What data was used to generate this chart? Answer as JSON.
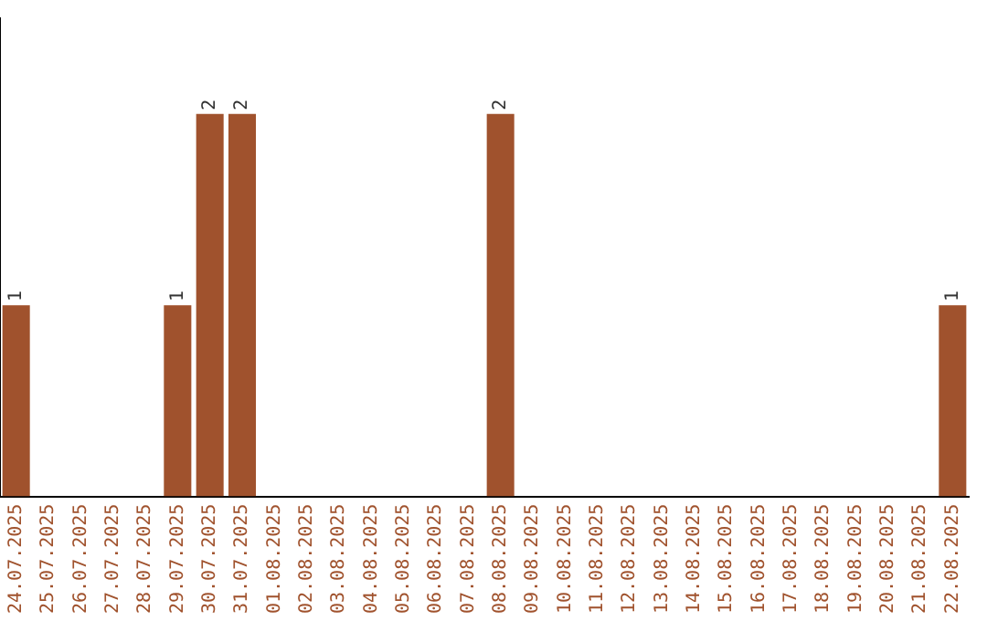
{
  "chart_data": {
    "type": "bar",
    "categories": [
      "24.07.2025",
      "25.07.2025",
      "26.07.2025",
      "27.07.2025",
      "28.07.2025",
      "29.07.2025",
      "30.07.2025",
      "31.07.2025",
      "01.08.2025",
      "02.08.2025",
      "03.08.2025",
      "04.08.2025",
      "05.08.2025",
      "06.08.2025",
      "07.08.2025",
      "08.08.2025",
      "09.08.2025",
      "10.08.2025",
      "11.08.2025",
      "12.08.2025",
      "13.08.2025",
      "14.08.2025",
      "15.08.2025",
      "16.08.2025",
      "17.08.2025",
      "18.08.2025",
      "19.08.2025",
      "20.08.2025",
      "21.08.2025",
      "22.08.2025"
    ],
    "values": [
      1,
      0,
      0,
      0,
      0,
      1,
      2,
      2,
      0,
      0,
      0,
      0,
      0,
      0,
      0,
      2,
      0,
      0,
      0,
      0,
      0,
      0,
      0,
      0,
      0,
      0,
      0,
      0,
      0,
      1
    ],
    "value_labels": [
      "1",
      null,
      null,
      null,
      null,
      "1",
      "2",
      "2",
      null,
      null,
      null,
      null,
      null,
      null,
      null,
      "2",
      null,
      null,
      null,
      null,
      null,
      null,
      null,
      null,
      null,
      null,
      null,
      null,
      null,
      "1"
    ],
    "color": "#a0522d",
    "grid": false,
    "legend": false,
    "tick_labels": "x"
  }
}
